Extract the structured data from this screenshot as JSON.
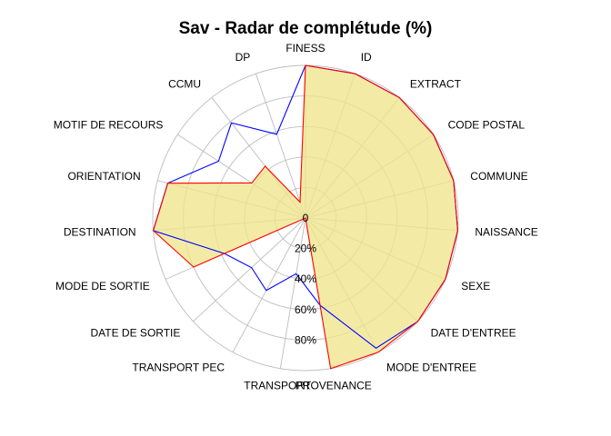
{
  "chart_data": {
    "type": "radar",
    "title": "Sav - Radar de complétude (%)",
    "categories": [
      "FINESS",
      "ID",
      "EXTRACT",
      "CODE POSTAL",
      "COMMUNE",
      "NAISSANCE",
      "SEXE",
      "DATE D'ENTREE",
      "MODE D'ENTREE",
      "PROVENANCE",
      "TRANSPORT",
      "TRANSPORT PEC",
      "DATE DE SORTIE",
      "MODE DE SORTIE",
      "DESTINATION",
      "ORIENTATION",
      "MOTIF DE RECOURS",
      "CCMU",
      "DP"
    ],
    "radial_ticks": [
      "0",
      "20%",
      "40%",
      "60%",
      "80%"
    ],
    "rlim": [
      0,
      100
    ],
    "series": [
      {
        "color": "#0000ff",
        "values": [
          100,
          100,
          100,
          100,
          100,
          100,
          100,
          100,
          97,
          58,
          37,
          54,
          48,
          58,
          100,
          93,
          68,
          79,
          58
        ]
      },
      {
        "color": "#ff0000",
        "values": [
          100,
          100,
          100,
          100,
          100,
          100,
          100,
          100,
          100,
          100,
          0,
          0,
          0,
          80,
          100,
          93,
          42,
          43,
          11
        ]
      }
    ],
    "fill_color": "#f0e68c",
    "grid": true
  }
}
